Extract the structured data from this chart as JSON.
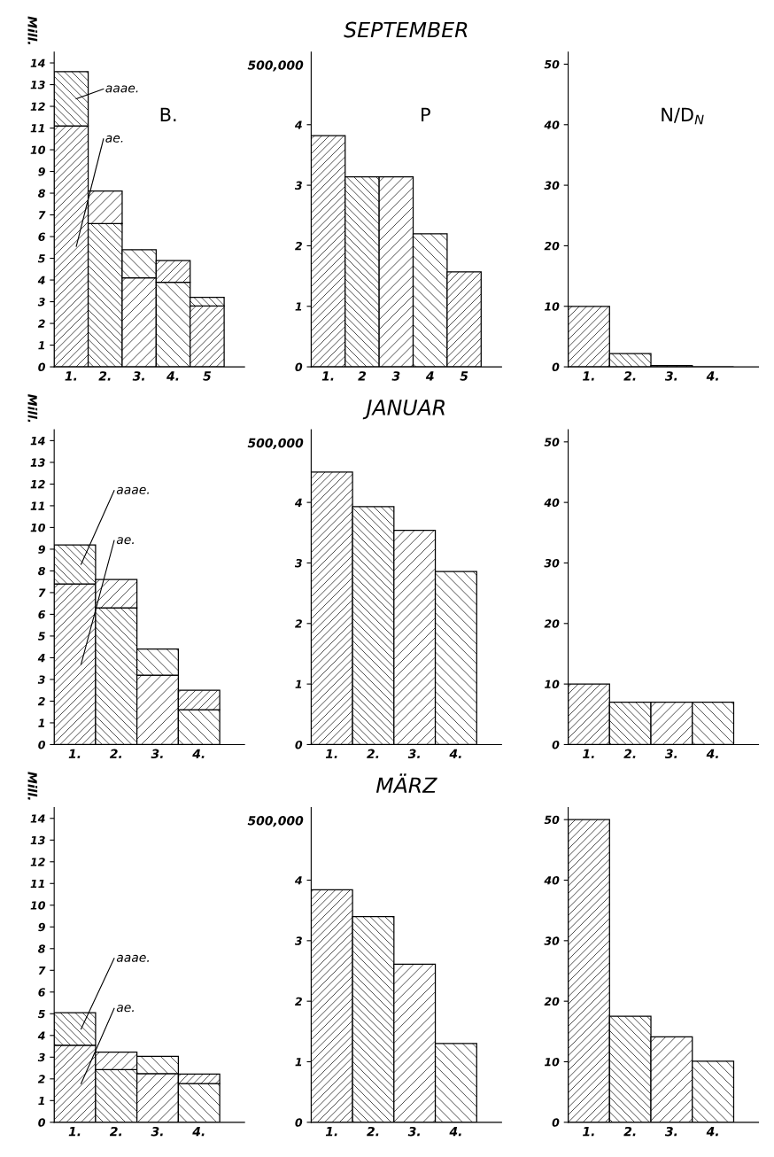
{
  "chart_data": [
    {
      "type": "bar",
      "stacked": true,
      "ylabel": "Mill.",
      "annotations": [
        "B."
      ],
      "categories": [
        "1.",
        "2.",
        "3.",
        "4.",
        "5"
      ],
      "ylim": [
        0,
        14.5
      ],
      "yticks": [
        0,
        1,
        2,
        3,
        4,
        5,
        6,
        7,
        8,
        9,
        10,
        11,
        12,
        13,
        14
      ],
      "legend": false,
      "grid": false,
      "series": [
        {
          "name": "ae.",
          "color": "#000000",
          "values": [
            11.1,
            6.6,
            4.1,
            3.9,
            2.8
          ]
        },
        {
          "name": "aaae.",
          "color": "#000000",
          "values": [
            2.5,
            1.5,
            1.3,
            1.0,
            0.4
          ]
        }
      ]
    },
    {
      "type": "bar",
      "title": "SEPTEMBER",
      "ylabel": "500,000",
      "annotations": [
        "P"
      ],
      "categories": [
        "1.",
        "2",
        "3",
        "4",
        "5"
      ],
      "ylim": [
        0,
        5.2
      ],
      "yticks": [
        0,
        1,
        2,
        3,
        4
      ],
      "legend": false,
      "grid": false,
      "series": [
        {
          "color": "#000000",
          "values": [
            3.82,
            3.14,
            3.14,
            2.2,
            1.57
          ]
        }
      ]
    },
    {
      "type": "bar",
      "annotations": [
        "N/D$_{N}$"
      ],
      "categories": [
        "1.",
        "2.",
        "3.",
        "4."
      ],
      "ylim": [
        0,
        52
      ],
      "yticks": [
        0,
        10,
        20,
        30,
        40,
        50
      ],
      "legend": false,
      "grid": false,
      "series": [
        {
          "color": "#000000",
          "values": [
            10,
            2.2,
            0.2,
            0
          ]
        }
      ]
    },
    {
      "type": "bar",
      "stacked": true,
      "ylabel": "Mill.",
      "categories": [
        "1.",
        "2.",
        "3.",
        "4."
      ],
      "ylim": [
        0,
        14.5
      ],
      "yticks": [
        0,
        1,
        2,
        3,
        4,
        5,
        6,
        7,
        8,
        9,
        10,
        11,
        12,
        13,
        14
      ],
      "legend": false,
      "grid": false,
      "series": [
        {
          "name": "ae.",
          "color": "#000000",
          "values": [
            7.4,
            6.3,
            3.2,
            1.6
          ]
        },
        {
          "name": "aaae.",
          "color": "#000000",
          "values": [
            1.8,
            1.3,
            1.2,
            0.9
          ]
        }
      ]
    },
    {
      "type": "bar",
      "title": "JANUAR",
      "ylabel": "500,000",
      "categories": [
        "1.",
        "2.",
        "3.",
        "4."
      ],
      "ylim": [
        0,
        5.2
      ],
      "yticks": [
        0,
        1,
        2,
        3,
        4
      ],
      "legend": false,
      "grid": false,
      "series": [
        {
          "color": "#000000",
          "values": [
            4.5,
            3.93,
            3.54,
            2.86
          ]
        }
      ]
    },
    {
      "type": "bar",
      "categories": [
        "1.",
        "2.",
        "3.",
        "4."
      ],
      "ylim": [
        0,
        52
      ],
      "yticks": [
        0,
        10,
        20,
        30,
        40,
        50
      ],
      "legend": false,
      "grid": false,
      "series": [
        {
          "color": "#000000",
          "values": [
            10,
            7,
            7,
            7
          ]
        }
      ]
    },
    {
      "type": "bar",
      "stacked": true,
      "ylabel": "Mill.",
      "categories": [
        "1.",
        "2.",
        "3.",
        "4."
      ],
      "ylim": [
        0,
        14.5
      ],
      "yticks": [
        0,
        1,
        2,
        3,
        4,
        5,
        6,
        7,
        8,
        9,
        10,
        11,
        12,
        13,
        14
      ],
      "legend": false,
      "grid": false,
      "series": [
        {
          "name": "ae.",
          "color": "#000000",
          "values": [
            3.55,
            2.43,
            2.24,
            1.78
          ]
        },
        {
          "name": "aaae.",
          "color": "#000000",
          "values": [
            1.5,
            0.8,
            0.8,
            0.44
          ]
        }
      ]
    },
    {
      "type": "bar",
      "title": "MÄRZ",
      "ylabel": "500,000",
      "categories": [
        "1.",
        "2.",
        "3.",
        "4."
      ],
      "ylim": [
        0,
        5.2
      ],
      "yticks": [
        0,
        1,
        2,
        3,
        4
      ],
      "legend": false,
      "grid": false,
      "series": [
        {
          "color": "#000000",
          "values": [
            3.84,
            3.4,
            2.61,
            1.3
          ]
        }
      ]
    },
    {
      "type": "bar",
      "categories": [
        "1.",
        "2.",
        "3.",
        "4."
      ],
      "ylim": [
        0,
        52
      ],
      "yticks": [
        0,
        10,
        20,
        30,
        40,
        50
      ],
      "legend": false,
      "grid": false,
      "series": [
        {
          "color": "#000000",
          "values": [
            50,
            17.5,
            14.1,
            10.1
          ]
        }
      ]
    }
  ]
}
